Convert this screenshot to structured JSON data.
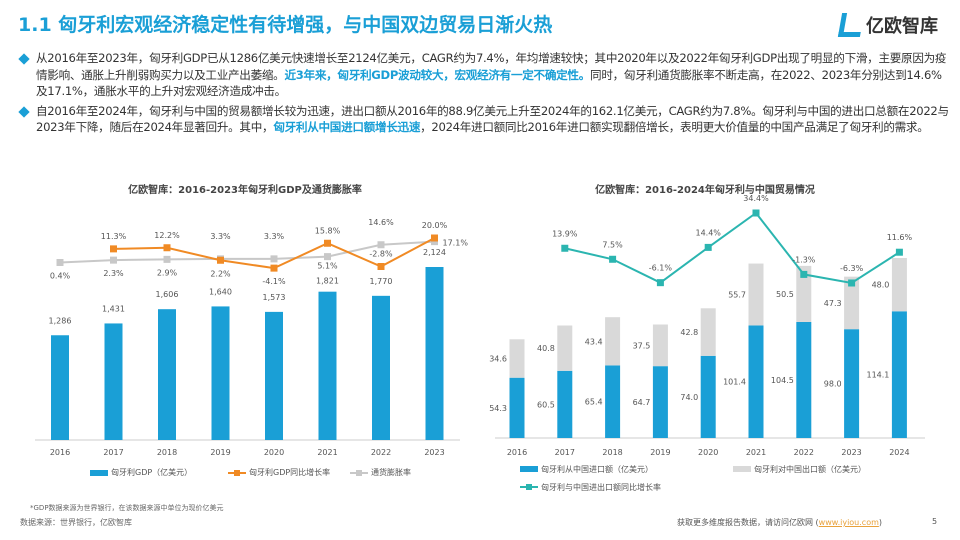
{
  "header": {
    "title": "1.1 匈牙利宏观经济稳定性有待增强，与中国双边贸易日渐火热",
    "logo": "亿欧智库"
  },
  "bullets": [
    {
      "parts": [
        {
          "t": "从2016年至2023年，匈牙利GDP已从1286亿美元快速增长至2124亿美元，CAGR约为7.4%，年均增速较快；其中2020年以及2022年匈牙利GDP出现了明显的下滑，主要原因为疫情影响、通胀上升削弱购买力以及工业产出萎缩。"
        },
        {
          "t": "近3年来，匈牙利GDP波动较大，宏观经济有一定不确定性。",
          "hl": true
        },
        {
          "t": "同时，匈牙利通货膨胀率不断走高，在2022、2023年分别达到14.6%及17.1%，通胀水平的上升对宏观经济造成冲击。"
        }
      ]
    },
    {
      "parts": [
        {
          "t": "自2016年至2024年，匈牙利与中国的贸易额增长较为迅速，进出口额从2016年的88.9亿美元上升至2024年的162.1亿美元，CAGR约为7.8%。匈牙利与中国的进出口总额在2022与2023年下降，随后在2024年显著回升。其中，"
        },
        {
          "t": "匈牙利从中国进口额增长迅速",
          "hl": true
        },
        {
          "t": "，2024年进口额同比2016年进口额实现翻倍增长，表明更大价值量的中国产品满足了匈牙利的需求。"
        }
      ]
    }
  ],
  "chart_data": [
    {
      "type": "bar+line",
      "title": "亿欧智库：2016-2023年匈牙利GDP及通货膨胀率",
      "categories": [
        "2016",
        "2017",
        "2018",
        "2019",
        "2020",
        "2021",
        "2022",
        "2023"
      ],
      "series": [
        {
          "name": "匈牙利GDP（亿美元）",
          "type": "bar",
          "color": "#1a9fd6",
          "values": [
            1286,
            1431,
            1606,
            1640,
            1573,
            1821,
            1770,
            2124
          ],
          "labels": [
            "1,286",
            "1,431",
            "1,606",
            "1,640",
            "1,573",
            "1,821",
            "1,770",
            "2,124"
          ]
        },
        {
          "name": "匈牙利GDP同比增长率",
          "type": "line",
          "color": "#f08a24",
          "values": [
            null,
            11.3,
            12.2,
            2.2,
            -4.1,
            15.8,
            -2.8,
            20.0
          ]
        },
        {
          "name": "通货膨胀率",
          "type": "line",
          "color": "#c8c8c8",
          "values": [
            0.4,
            2.3,
            2.9,
            3.3,
            3.3,
            5.1,
            14.6,
            17.1
          ]
        }
      ]
    },
    {
      "type": "stacked-bar+line",
      "title": "亿欧智库：2016-2024年匈牙利与中国贸易情况",
      "categories": [
        "2016",
        "2017",
        "2018",
        "2019",
        "2020",
        "2021",
        "2022",
        "2023",
        "2024"
      ],
      "series": [
        {
          "name": "匈牙利从中国进口额（亿美元）",
          "type": "bar",
          "color": "#1a9fd6",
          "values": [
            54.3,
            60.5,
            65.4,
            64.7,
            74.0,
            101.4,
            104.5,
            98.0,
            114.1
          ]
        },
        {
          "name": "匈牙利对中国出口额（亿美元）",
          "type": "bar",
          "color": "#d9d9d9",
          "values": [
            34.6,
            40.8,
            43.4,
            37.5,
            42.8,
            55.7,
            50.5,
            47.3,
            48.0
          ]
        },
        {
          "name": "匈牙利与中国进出口额同比增长率",
          "type": "line",
          "color": "#2bb5b0",
          "values": [
            null,
            13.9,
            7.5,
            -6.1,
            14.4,
            34.4,
            -1.3,
            -6.3,
            11.6
          ]
        }
      ]
    }
  ],
  "footer": {
    "note": "*GDP数据来源为世界银行，在该数据来源中单位为现价亿美元",
    "source": "数据来源：世界银行，亿欧智库",
    "cta": "获取更多维度报告数据，请访问亿欧网 (",
    "url": "www.iyiou.com",
    "cta_end": ")",
    "page": "5"
  }
}
